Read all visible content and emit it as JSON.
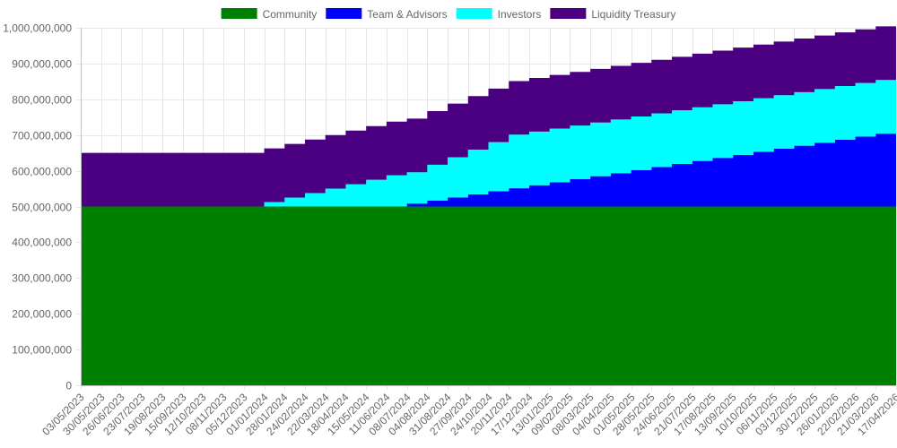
{
  "chart_data": {
    "type": "area",
    "stacked": true,
    "step": true,
    "legend_position": "top",
    "grid": true,
    "ylim": [
      0,
      1000000000
    ],
    "yticks": [
      0,
      100000000,
      200000000,
      300000000,
      400000000,
      500000000,
      600000000,
      700000000,
      800000000,
      900000000,
      1000000000
    ],
    "ytick_labels": [
      "0",
      "100,000,000",
      "200,000,000",
      "300,000,000",
      "400,000,000",
      "500,000,000",
      "600,000,000",
      "700,000,000",
      "800,000,000",
      "900,000,000",
      "1,000,000,000"
    ],
    "x": [
      "03/05/2023",
      "30/05/2023",
      "26/06/2023",
      "23/07/2023",
      "19/08/2023",
      "15/09/2023",
      "12/10/2023",
      "08/11/2023",
      "05/12/2023",
      "01/01/2024",
      "28/01/2024",
      "24/02/2024",
      "22/03/2024",
      "18/04/2024",
      "15/05/2024",
      "11/06/2024",
      "08/07/2024",
      "04/08/2024",
      "31/08/2024",
      "27/09/2024",
      "24/10/2024",
      "20/11/2024",
      "17/12/2024",
      "13/01/2025",
      "09/02/2025",
      "08/03/2025",
      "04/04/2025",
      "01/05/2025",
      "28/05/2025",
      "24/06/2025",
      "21/07/2025",
      "17/08/2025",
      "13/09/2025",
      "10/10/2025",
      "06/11/2025",
      "03/12/2025",
      "30/12/2025",
      "26/01/2026",
      "22/02/2026",
      "21/03/2026",
      "17/04/2026"
    ],
    "series": [
      {
        "name": "Community",
        "color": "#008000",
        "values": [
          500000000,
          500000000,
          500000000,
          500000000,
          500000000,
          500000000,
          500000000,
          500000000,
          500000000,
          500000000,
          500000000,
          500000000,
          500000000,
          500000000,
          500000000,
          500000000,
          500000000,
          500000000,
          500000000,
          500000000,
          500000000,
          500000000,
          500000000,
          500000000,
          500000000,
          500000000,
          500000000,
          500000000,
          500000000,
          500000000,
          500000000,
          500000000,
          500000000,
          500000000,
          500000000,
          500000000,
          500000000,
          500000000,
          500000000,
          500000000,
          500000000
        ]
      },
      {
        "name": "Team & Advisors",
        "color": "#0000ff",
        "values": [
          0,
          0,
          0,
          0,
          0,
          0,
          0,
          0,
          0,
          0,
          0,
          0,
          0,
          0,
          0,
          0,
          8500000,
          17000000,
          25500000,
          34000000,
          42500000,
          51000000,
          59500000,
          68000000,
          76500000,
          85000000,
          93500000,
          102000000,
          110500000,
          119000000,
          127500000,
          136000000,
          144500000,
          153000000,
          161500000,
          170000000,
          178500000,
          187000000,
          195500000,
          204000000,
          212500000
        ]
      },
      {
        "name": "Investors",
        "color": "#00ffff",
        "values": [
          0,
          0,
          0,
          0,
          0,
          0,
          0,
          0,
          0,
          12500000,
          25000000,
          37500000,
          50000000,
          62500000,
          75000000,
          87500000,
          87500000,
          100000000,
          112500000,
          125000000,
          137500000,
          150000000,
          150000000,
          150000000,
          150000000,
          150000000,
          150000000,
          150000000,
          150000000,
          150000000,
          150000000,
          150000000,
          150000000,
          150000000,
          150000000,
          150000000,
          150000000,
          150000000,
          150000000,
          150000000,
          150000000
        ]
      },
      {
        "name": "Liquidity Treasury",
        "color": "#4b0082",
        "values": [
          150000000,
          150000000,
          150000000,
          150000000,
          150000000,
          150000000,
          150000000,
          150000000,
          150000000,
          150000000,
          150000000,
          150000000,
          150000000,
          150000000,
          150000000,
          150000000,
          150000000,
          150000000,
          150000000,
          150000000,
          150000000,
          150000000,
          150000000,
          150000000,
          150000000,
          150000000,
          150000000,
          150000000,
          150000000,
          150000000,
          150000000,
          150000000,
          150000000,
          150000000,
          150000000,
          150000000,
          150000000,
          150000000,
          150000000,
          150000000,
          150000000
        ]
      }
    ]
  }
}
